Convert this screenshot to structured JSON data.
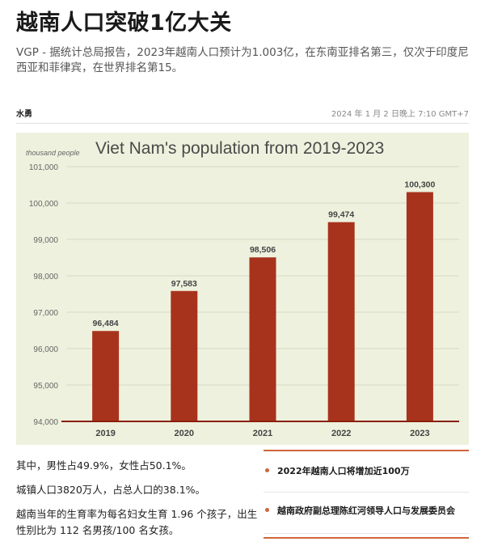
{
  "article": {
    "headline": "越南人口突破1亿大关",
    "lead": "VGP - 据统计总局报告，2023年越南人口预计为1.003亿，在东南亚排名第三，仅次于印度尼西亚和菲律宾，在世界排名第15。",
    "author": "水勇",
    "date": "2024 年 1 月 2 日晚上 7:10 GMT+7"
  },
  "chart_data": {
    "type": "bar",
    "title": "Viet Nam's population from 2019-2023",
    "ylabel": "thousand people",
    "categories": [
      "2019",
      "2020",
      "2021",
      "2022",
      "2023"
    ],
    "values": [
      96484,
      97583,
      98506,
      99474,
      100300
    ],
    "value_labels": [
      "96,484",
      "97,583",
      "98,506",
      "99,474",
      "100,300"
    ],
    "ylim": [
      94000,
      101000
    ],
    "yticks": [
      94000,
      95000,
      96000,
      97000,
      98000,
      99000,
      100000,
      101000
    ],
    "ytick_labels": [
      "94,000",
      "95,000",
      "96,000",
      "97,000",
      "98,000",
      "99,000",
      "100,000",
      "101,000"
    ],
    "grid": true,
    "colors": {
      "bar": "#a8331d",
      "background": "#eef1dd",
      "axis": "#8a1f0e"
    }
  },
  "facts": [
    "其中，男性占49.9%，女性占50.1%。",
    "城镇人口3820万人，占总人口的38.1%。",
    "越南当年的生育率为每名妇女生育 1.96 个孩子，出生性别比为 112 名男孩/100 名女孩。"
  ],
  "related": {
    "accent": "#d0653a",
    "items": [
      "2022年越南人口将增加近100万",
      "越南政府副总理陈红河领导人口与发展委员会"
    ]
  }
}
